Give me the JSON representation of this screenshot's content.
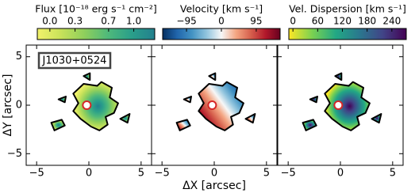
{
  "chart_data": [
    {
      "type": "map",
      "title": "Flux [10⁻¹⁸ erg s⁻¹ cm⁻²]",
      "annotation": "J1030+0524",
      "ylabel": "ΔY [arcsec]",
      "xlim": [
        -6,
        6
      ],
      "ylim": [
        -6.2,
        6.2
      ],
      "xticks": [
        {
          "value": -5,
          "label": "−5"
        },
        0,
        5
      ],
      "yticks": [
        {
          "value": -5,
          "label": "−5"
        },
        0,
        5
      ],
      "clim": [
        -0.15,
        1.25
      ],
      "cticks": [
        {
          "value": 0,
          "label": "0.0"
        },
        0.3,
        0.7,
        {
          "value": 1,
          "label": "1.0"
        }
      ],
      "colormap": [
        "#f2f26b",
        "#c8e25a",
        "#8fcf5c",
        "#4fb97a",
        "#2a9f8a",
        "#23808e"
      ]
    },
    {
      "type": "map",
      "title": "Velocity [km s⁻¹]",
      "xlabel": "ΔX [arcsec]",
      "xlim": [
        -6,
        6
      ],
      "ylim": [
        -6.2,
        6.2
      ],
      "xticks": [
        {
          "value": -5,
          "label": "−5"
        },
        0,
        5
      ],
      "yticks": [
        -5,
        0,
        5
      ],
      "clim": [
        -160,
        160
      ],
      "cticks": [
        {
          "value": -95,
          "label": "−95"
        },
        0,
        95
      ],
      "colormap": [
        "#053061",
        "#2166ac",
        "#4393c3",
        "#92c5de",
        "#f7f7f7",
        "#f4a582",
        "#d6604d",
        "#b2182b",
        "#67001f"
      ]
    },
    {
      "type": "map",
      "title": "Vel. Dispersion [km s⁻¹]",
      "xlim": [
        -6,
        6
      ],
      "ylim": [
        -6.2,
        6.2
      ],
      "xticks": [
        {
          "value": -5,
          "label": "−5"
        },
        0,
        5
      ],
      "yticks": [
        -5,
        0,
        5
      ],
      "clim": [
        -10,
        275
      ],
      "cticks": [
        0,
        60,
        120,
        180,
        240
      ],
      "colormap": [
        "#fde725",
        "#7ad151",
        "#22a884",
        "#2a788e",
        "#414487",
        "#440154"
      ]
    }
  ]
}
